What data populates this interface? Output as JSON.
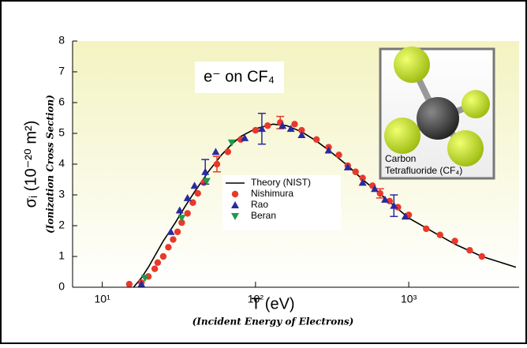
{
  "chart_data": {
    "type": "scatter",
    "ylabel": "σᵢ (10⁻²⁰ m²)",
    "ylabel_note": "(Ionization Cross Section)",
    "xlabel": "T (eV)",
    "xlabel_note": "(Incident Energy of Electrons)",
    "annotation": "e⁻ on CF₄",
    "inset_labels": [
      "Carbon",
      "Tetrafluoride (CF₄)"
    ],
    "xscale": "log",
    "xlim": [
      6.4,
      5250
    ],
    "xticks": [
      {
        "value": 10,
        "label": "10¹"
      },
      {
        "value": 100,
        "label": "10²"
      },
      {
        "value": 1000,
        "label": "10³"
      }
    ],
    "ylim": [
      0,
      8
    ],
    "yticks": [
      0,
      1,
      2,
      3,
      4,
      5,
      6,
      7,
      8
    ],
    "legend": "center",
    "series": [
      {
        "name": "Theory (NIST)",
        "kind": "line",
        "color": "#000000",
        "x": [
          16,
          18,
          20,
          25,
          30,
          35,
          40,
          50,
          60,
          70,
          80,
          100,
          130,
          160,
          200,
          250,
          300,
          400,
          500,
          700,
          1000,
          1500,
          2000,
          3000,
          5000
        ],
        "values": [
          0,
          0.3,
          0.65,
          1.5,
          2.1,
          2.65,
          3.1,
          3.8,
          4.3,
          4.65,
          4.9,
          5.15,
          5.3,
          5.25,
          5.05,
          4.75,
          4.45,
          3.95,
          3.5,
          2.9,
          2.25,
          1.75,
          1.4,
          1.0,
          0.65
        ]
      },
      {
        "name": "Nishimura",
        "kind": "circle",
        "color": "#e8392a",
        "x": [
          15,
          18,
          20,
          22,
          23,
          25,
          27,
          29,
          31,
          33,
          36,
          39,
          42,
          46,
          56,
          66,
          80,
          100,
          120,
          145,
          180,
          200,
          250,
          300,
          350,
          400,
          450,
          500,
          580,
          650,
          750,
          850,
          1000,
          1300,
          1600,
          2000,
          2500,
          3000
        ],
        "values": [
          0.1,
          0.15,
          0.35,
          0.6,
          0.8,
          1.0,
          1.3,
          1.55,
          1.8,
          2.1,
          2.4,
          2.75,
          3.05,
          3.4,
          4.0,
          4.4,
          4.8,
          5.1,
          5.25,
          5.35,
          5.3,
          5.1,
          4.8,
          4.55,
          4.3,
          3.95,
          3.75,
          3.55,
          3.3,
          3.05,
          2.8,
          2.6,
          2.35,
          1.9,
          1.7,
          1.5,
          1.2,
          1.0
        ],
        "errors": [
          null,
          null,
          null,
          null,
          null,
          null,
          null,
          null,
          null,
          null,
          null,
          null,
          null,
          null,
          0.25,
          null,
          null,
          null,
          null,
          0.2,
          null,
          null,
          null,
          null,
          null,
          null,
          null,
          null,
          null,
          0.15,
          null,
          null,
          null,
          null,
          null,
          null,
          null,
          null
        ]
      },
      {
        "name": "Rao",
        "kind": "triangle-up",
        "color": "#2a2aa0",
        "x": [
          18,
          28,
          32,
          36,
          40,
          47,
          55,
          85,
          110,
          150,
          170,
          200,
          300,
          400,
          500,
          600,
          700,
          800,
          950
        ],
        "values": [
          0.1,
          1.8,
          2.5,
          2.9,
          3.3,
          3.75,
          4.4,
          4.85,
          5.15,
          5.25,
          5.15,
          4.95,
          4.45,
          3.9,
          3.4,
          3.2,
          2.85,
          2.65,
          2.3
        ],
        "errors": [
          null,
          null,
          null,
          null,
          null,
          0.4,
          null,
          null,
          0.5,
          null,
          null,
          null,
          null,
          null,
          null,
          null,
          null,
          0.35,
          null
        ]
      },
      {
        "name": "Beran",
        "kind": "triangle-down",
        "color": "#1e9a4a",
        "x": [
          19,
          33,
          48,
          70
        ],
        "values": [
          0.3,
          2.25,
          3.45,
          4.7
        ]
      }
    ]
  }
}
